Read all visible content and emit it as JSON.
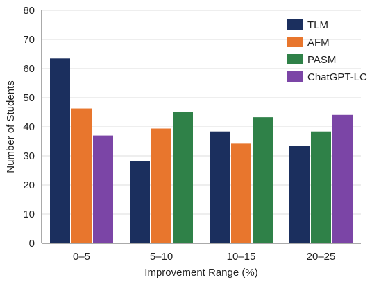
{
  "chart_data": {
    "type": "bar",
    "title": "",
    "xlabel": "Improvement Range (%)",
    "ylabel": "Number of Students",
    "categories": [
      "0–5",
      "5–10",
      "10–15",
      "20–25"
    ],
    "ylim": [
      0,
      80
    ],
    "yticks": [
      0,
      10,
      20,
      30,
      40,
      50,
      60,
      70,
      80
    ],
    "grid": "horizontal",
    "legend_position": "top-right",
    "series": [
      {
        "name": "TLM",
        "color": "#1b2f5e",
        "values": [
          63.5,
          28.2,
          38.4,
          33.4
        ]
      },
      {
        "name": "AFM",
        "color": "#e8762d",
        "values": [
          46.3,
          39.4,
          34.2,
          null
        ]
      },
      {
        "name": "PASM",
        "color": "#2f8148",
        "values": [
          null,
          45.0,
          43.3,
          38.4
        ]
      },
      {
        "name": "ChatGPT-LC",
        "color": "#7b45a6",
        "values": [
          37.0,
          null,
          null,
          44.1
        ]
      }
    ]
  }
}
